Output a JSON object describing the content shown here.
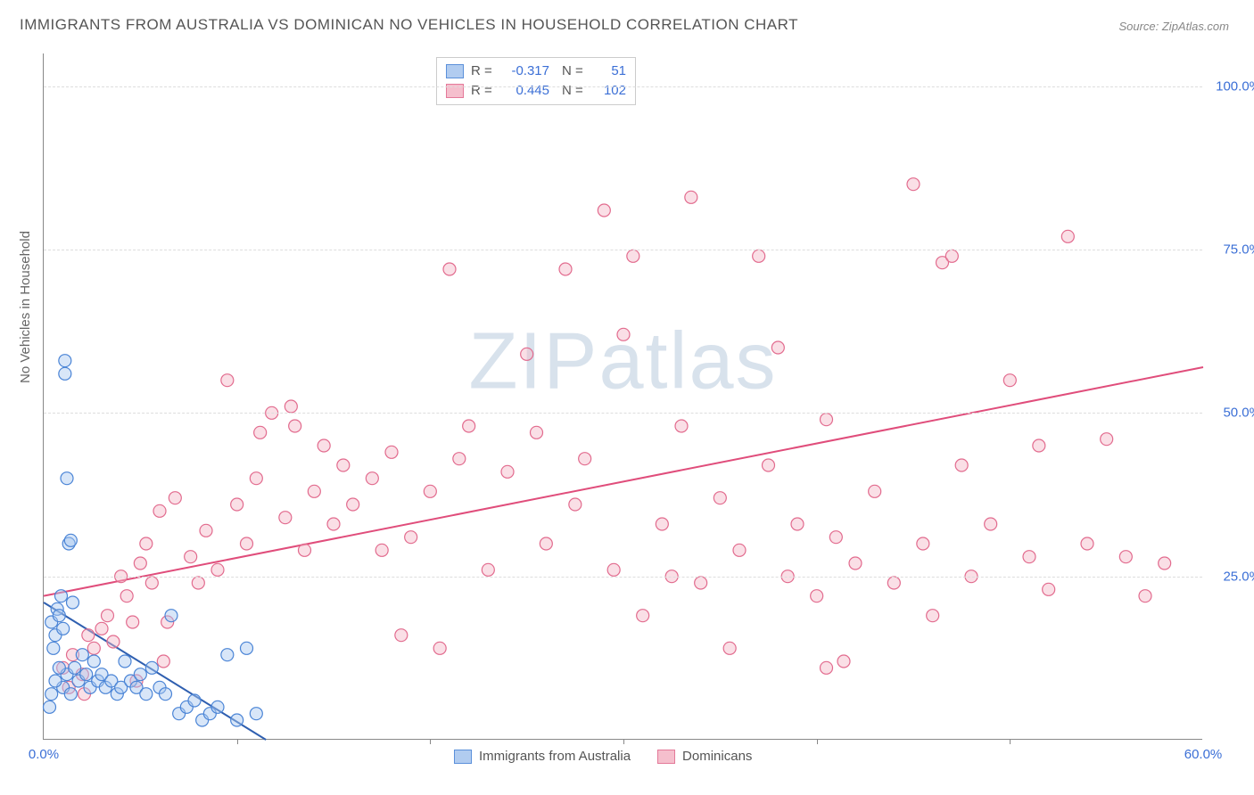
{
  "title": "IMMIGRANTS FROM AUSTRALIA VS DOMINICAN NO VEHICLES IN HOUSEHOLD CORRELATION CHART",
  "source_prefix": "Source: ",
  "source_name": "ZipAtlas.com",
  "ylabel": "No Vehicles in Household",
  "watermark_a": "ZIP",
  "watermark_b": "atlas",
  "chart": {
    "type": "scatter",
    "xlim": [
      0,
      60
    ],
    "ylim": [
      0,
      105
    ],
    "x_ticks": [
      0,
      60
    ],
    "x_tick_labels": [
      "0.0%",
      "60.0%"
    ],
    "x_minor_ticks": [
      10,
      20,
      30,
      40,
      50
    ],
    "y_ticks": [
      25,
      50,
      75,
      100
    ],
    "y_tick_labels": [
      "25.0%",
      "50.0%",
      "75.0%",
      "100.0%"
    ],
    "grid_color": "#dddddd",
    "axis_color": "#888888",
    "tick_label_color": "#3b6fd6",
    "background_color": "#ffffff",
    "marker_radius": 7,
    "marker_stroke_width": 1.2,
    "line_width": 2,
    "series": [
      {
        "name": "Immigrants from Australia",
        "fill": "#a9c7ef",
        "fill_opacity": 0.45,
        "stroke": "#4a84d6",
        "line_color": "#2f5fb0",
        "R": "-0.317",
        "N": "51",
        "trend": {
          "x1": 0,
          "y1": 21,
          "x2": 11.5,
          "y2": 0
        },
        "points": [
          [
            0.4,
            18
          ],
          [
            0.5,
            14
          ],
          [
            0.6,
            16
          ],
          [
            0.7,
            20
          ],
          [
            0.8,
            19
          ],
          [
            0.9,
            22
          ],
          [
            1.0,
            17
          ],
          [
            1.1,
            56
          ],
          [
            1.1,
            58
          ],
          [
            1.2,
            40
          ],
          [
            1.3,
            30
          ],
          [
            1.4,
            30.5
          ],
          [
            1.5,
            21
          ],
          [
            1.0,
            8
          ],
          [
            1.2,
            10
          ],
          [
            1.4,
            7
          ],
          [
            1.6,
            11
          ],
          [
            1.8,
            9
          ],
          [
            2.0,
            13
          ],
          [
            2.2,
            10
          ],
          [
            2.4,
            8
          ],
          [
            2.6,
            12
          ],
          [
            2.8,
            9
          ],
          [
            3.0,
            10
          ],
          [
            3.2,
            8
          ],
          [
            3.5,
            9
          ],
          [
            3.8,
            7
          ],
          [
            4.0,
            8
          ],
          [
            4.2,
            12
          ],
          [
            4.5,
            9
          ],
          [
            4.8,
            8
          ],
          [
            5.0,
            10
          ],
          [
            5.3,
            7
          ],
          [
            5.6,
            11
          ],
          [
            6.0,
            8
          ],
          [
            6.3,
            7
          ],
          [
            6.6,
            19
          ],
          [
            7.0,
            4
          ],
          [
            7.4,
            5
          ],
          [
            7.8,
            6
          ],
          [
            8.2,
            3
          ],
          [
            8.6,
            4
          ],
          [
            9.0,
            5
          ],
          [
            9.5,
            13
          ],
          [
            10.0,
            3
          ],
          [
            10.5,
            14
          ],
          [
            11.0,
            4
          ],
          [
            0.3,
            5
          ],
          [
            0.4,
            7
          ],
          [
            0.6,
            9
          ],
          [
            0.8,
            11
          ]
        ]
      },
      {
        "name": "Dominicans",
        "fill": "#f4b9c8",
        "fill_opacity": 0.45,
        "stroke": "#e26b8e",
        "line_color": "#e04d7b",
        "R": "0.445",
        "N": "102",
        "trend": {
          "x1": 0,
          "y1": 22,
          "x2": 60,
          "y2": 57
        },
        "points": [
          [
            1.0,
            11
          ],
          [
            1.5,
            13
          ],
          [
            2.0,
            10
          ],
          [
            2.3,
            16
          ],
          [
            2.6,
            14
          ],
          [
            3.0,
            17
          ],
          [
            3.3,
            19
          ],
          [
            3.6,
            15
          ],
          [
            4.0,
            25
          ],
          [
            4.3,
            22
          ],
          [
            4.6,
            18
          ],
          [
            5.0,
            27
          ],
          [
            5.3,
            30
          ],
          [
            5.6,
            24
          ],
          [
            6.0,
            35
          ],
          [
            6.4,
            18
          ],
          [
            6.8,
            37
          ],
          [
            7.6,
            28
          ],
          [
            8.0,
            24
          ],
          [
            8.4,
            32
          ],
          [
            9.0,
            26
          ],
          [
            9.5,
            55
          ],
          [
            10.0,
            36
          ],
          [
            10.5,
            30
          ],
          [
            11.0,
            40
          ],
          [
            11.2,
            47
          ],
          [
            11.8,
            50
          ],
          [
            12.5,
            34
          ],
          [
            12.8,
            51
          ],
          [
            13.0,
            48
          ],
          [
            13.5,
            29
          ],
          [
            14.0,
            38
          ],
          [
            14.5,
            45
          ],
          [
            15.0,
            33
          ],
          [
            15.5,
            42
          ],
          [
            16.0,
            36
          ],
          [
            17.0,
            40
          ],
          [
            17.5,
            29
          ],
          [
            18.0,
            44
          ],
          [
            19.0,
            31
          ],
          [
            20.0,
            38
          ],
          [
            20.5,
            14
          ],
          [
            21.0,
            72
          ],
          [
            21.5,
            43
          ],
          [
            22.0,
            48
          ],
          [
            23.0,
            26
          ],
          [
            24.0,
            41
          ],
          [
            25.0,
            59
          ],
          [
            25.5,
            47
          ],
          [
            26.0,
            30
          ],
          [
            27.0,
            72
          ],
          [
            27.5,
            36
          ],
          [
            28.0,
            43
          ],
          [
            29.0,
            81
          ],
          [
            29.5,
            26
          ],
          [
            30.0,
            62
          ],
          [
            30.5,
            74
          ],
          [
            31.0,
            19
          ],
          [
            32.0,
            33
          ],
          [
            33.0,
            48
          ],
          [
            33.5,
            83
          ],
          [
            34.0,
            24
          ],
          [
            35.0,
            37
          ],
          [
            35.5,
            14
          ],
          [
            36.0,
            29
          ],
          [
            37.0,
            74
          ],
          [
            37.5,
            42
          ],
          [
            38.0,
            60
          ],
          [
            38.5,
            25
          ],
          [
            39.0,
            33
          ],
          [
            40.0,
            22
          ],
          [
            40.5,
            49
          ],
          [
            41.0,
            31
          ],
          [
            41.4,
            12
          ],
          [
            42.0,
            27
          ],
          [
            43.0,
            38
          ],
          [
            44.0,
            24
          ],
          [
            45.0,
            85
          ],
          [
            45.5,
            30
          ],
          [
            46.0,
            19
          ],
          [
            46.5,
            73
          ],
          [
            47.0,
            74
          ],
          [
            47.5,
            42
          ],
          [
            48.0,
            25
          ],
          [
            49.0,
            33
          ],
          [
            50.0,
            55
          ],
          [
            51.0,
            28
          ],
          [
            51.5,
            45
          ],
          [
            52.0,
            23
          ],
          [
            53.0,
            77
          ],
          [
            54.0,
            30
          ],
          [
            55.0,
            46
          ],
          [
            56.0,
            28
          ],
          [
            57.0,
            22
          ],
          [
            58.0,
            27
          ],
          [
            40.5,
            11
          ],
          [
            32.5,
            25
          ],
          [
            18.5,
            16
          ],
          [
            6.2,
            12
          ],
          [
            4.8,
            9
          ],
          [
            2.1,
            7
          ],
          [
            1.3,
            8
          ]
        ]
      }
    ]
  },
  "legend_bottom": [
    {
      "label": "Immigrants from Australia",
      "series": 0
    },
    {
      "label": "Dominicans",
      "series": 1
    }
  ]
}
